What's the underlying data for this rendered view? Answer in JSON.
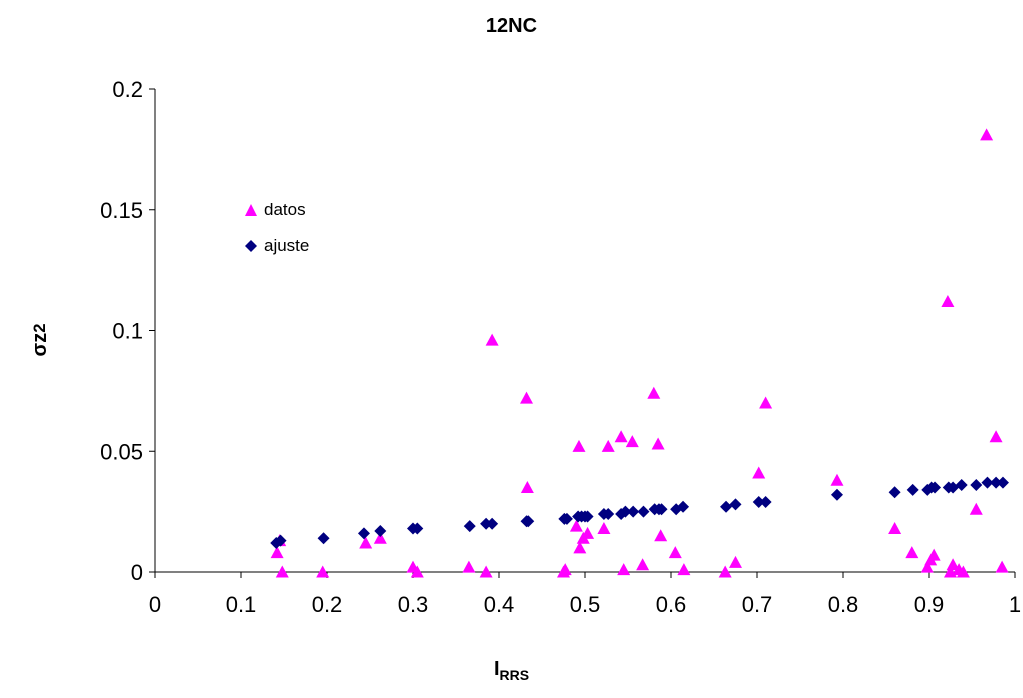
{
  "chart_data": {
    "type": "scatter",
    "title": "12NC",
    "xlabel_main": "I",
    "xlabel_sub": "RRS",
    "ylabel_main": "σz",
    "ylabel_sup": "2",
    "xlim": [
      0,
      1
    ],
    "ylim": [
      0,
      0.2
    ],
    "x_ticks": [
      0,
      0.1,
      0.2,
      0.3,
      0.4,
      0.5,
      0.6,
      0.7,
      0.8,
      0.9,
      1
    ],
    "x_tick_labels": [
      "0",
      "0.1",
      "0.2",
      "0.3",
      "0.4",
      "0.5",
      "0.6",
      "0.7",
      "0.8",
      "0.9",
      "1"
    ],
    "y_ticks": [
      0,
      0.05,
      0.1,
      0.15,
      0.2
    ],
    "y_tick_labels": [
      "0",
      "0.05",
      "0.1",
      "0.15",
      "0.2"
    ],
    "grid": false,
    "legend_position": "upper-left inside",
    "series": [
      {
        "name": "datos",
        "marker": "triangle",
        "color": "#FF00FF",
        "points": [
          [
            0.142,
            0.008
          ],
          [
            0.145,
            0.013
          ],
          [
            0.148,
            0.0
          ],
          [
            0.195,
            0.0
          ],
          [
            0.245,
            0.012
          ],
          [
            0.262,
            0.014
          ],
          [
            0.3,
            0.002
          ],
          [
            0.305,
            0.0
          ],
          [
            0.365,
            0.002
          ],
          [
            0.385,
            0.0
          ],
          [
            0.392,
            0.096
          ],
          [
            0.432,
            0.072
          ],
          [
            0.433,
            0.035
          ],
          [
            0.475,
            0.0
          ],
          [
            0.477,
            0.001
          ],
          [
            0.49,
            0.019
          ],
          [
            0.493,
            0.052
          ],
          [
            0.494,
            0.01
          ],
          [
            0.498,
            0.014
          ],
          [
            0.503,
            0.016
          ],
          [
            0.522,
            0.018
          ],
          [
            0.527,
            0.052
          ],
          [
            0.542,
            0.056
          ],
          [
            0.545,
            0.001
          ],
          [
            0.555,
            0.054
          ],
          [
            0.567,
            0.003
          ],
          [
            0.58,
            0.074
          ],
          [
            0.585,
            0.053
          ],
          [
            0.588,
            0.015
          ],
          [
            0.605,
            0.008
          ],
          [
            0.615,
            0.001
          ],
          [
            0.663,
            0.0
          ],
          [
            0.675,
            0.004
          ],
          [
            0.702,
            0.041
          ],
          [
            0.71,
            0.07
          ],
          [
            0.793,
            0.038
          ],
          [
            0.86,
            0.018
          ],
          [
            0.88,
            0.008
          ],
          [
            0.898,
            0.002
          ],
          [
            0.902,
            0.005
          ],
          [
            0.906,
            0.007
          ],
          [
            0.922,
            0.112
          ],
          [
            0.925,
            0.0
          ],
          [
            0.928,
            0.003
          ],
          [
            0.935,
            0.001
          ],
          [
            0.94,
            0.0
          ],
          [
            0.955,
            0.026
          ],
          [
            0.967,
            0.181
          ],
          [
            0.978,
            0.056
          ],
          [
            0.985,
            0.002
          ]
        ]
      },
      {
        "name": "ajuste",
        "marker": "diamond",
        "color": "#000080",
        "points": [
          [
            0.141,
            0.012
          ],
          [
            0.146,
            0.013
          ],
          [
            0.196,
            0.014
          ],
          [
            0.243,
            0.016
          ],
          [
            0.262,
            0.017
          ],
          [
            0.3,
            0.018
          ],
          [
            0.305,
            0.018
          ],
          [
            0.366,
            0.019
          ],
          [
            0.385,
            0.02
          ],
          [
            0.392,
            0.02
          ],
          [
            0.432,
            0.021
          ],
          [
            0.434,
            0.021
          ],
          [
            0.476,
            0.022
          ],
          [
            0.479,
            0.022
          ],
          [
            0.492,
            0.023
          ],
          [
            0.496,
            0.023
          ],
          [
            0.5,
            0.023
          ],
          [
            0.503,
            0.023
          ],
          [
            0.522,
            0.024
          ],
          [
            0.527,
            0.024
          ],
          [
            0.542,
            0.024
          ],
          [
            0.547,
            0.025
          ],
          [
            0.556,
            0.025
          ],
          [
            0.568,
            0.025
          ],
          [
            0.581,
            0.026
          ],
          [
            0.586,
            0.026
          ],
          [
            0.589,
            0.026
          ],
          [
            0.606,
            0.026
          ],
          [
            0.614,
            0.027
          ],
          [
            0.664,
            0.027
          ],
          [
            0.675,
            0.028
          ],
          [
            0.702,
            0.029
          ],
          [
            0.71,
            0.029
          ],
          [
            0.793,
            0.032
          ],
          [
            0.86,
            0.033
          ],
          [
            0.881,
            0.034
          ],
          [
            0.898,
            0.034
          ],
          [
            0.903,
            0.035
          ],
          [
            0.907,
            0.035
          ],
          [
            0.923,
            0.035
          ],
          [
            0.928,
            0.035
          ],
          [
            0.938,
            0.036
          ],
          [
            0.955,
            0.036
          ],
          [
            0.968,
            0.037
          ],
          [
            0.978,
            0.037
          ],
          [
            0.986,
            0.037
          ]
        ]
      }
    ]
  }
}
